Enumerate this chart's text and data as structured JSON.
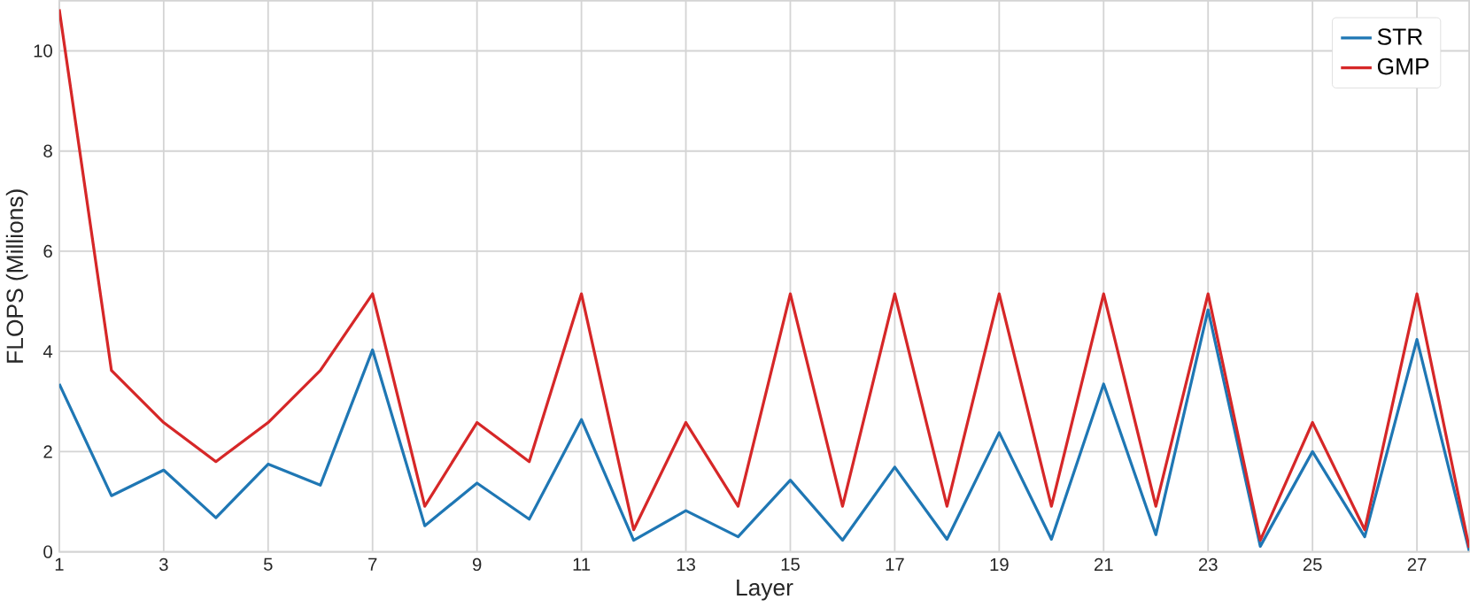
{
  "chart_data": {
    "type": "line",
    "xlabel": "Layer",
    "ylabel": "FLOPS (Millions)",
    "x": [
      1,
      2,
      3,
      4,
      5,
      6,
      7,
      8,
      9,
      10,
      11,
      12,
      13,
      14,
      15,
      16,
      17,
      18,
      19,
      20,
      21,
      22,
      23,
      24,
      25,
      26,
      27,
      28
    ],
    "series": [
      {
        "name": "STR",
        "color": "#1f77b4",
        "values": [
          3.35,
          1.12,
          1.63,
          0.68,
          1.75,
          1.33,
          4.03,
          0.52,
          1.37,
          0.65,
          2.64,
          0.23,
          0.82,
          0.3,
          1.43,
          0.23,
          1.69,
          0.25,
          2.38,
          0.25,
          3.35,
          0.34,
          4.83,
          0.11,
          2.0,
          0.3,
          4.24,
          0.02
        ]
      },
      {
        "name": "GMP",
        "color": "#d62728",
        "values": [
          10.83,
          3.62,
          2.58,
          1.8,
          2.58,
          3.62,
          5.15,
          0.91,
          2.58,
          1.8,
          5.15,
          0.44,
          2.58,
          0.91,
          5.15,
          0.91,
          5.15,
          0.91,
          5.15,
          0.91,
          5.15,
          0.91,
          5.15,
          0.23,
          2.58,
          0.44,
          5.15,
          0.08
        ]
      }
    ],
    "xlim": [
      1,
      28
    ],
    "ylim": [
      0,
      11.0
    ],
    "xticks": [
      1,
      3,
      5,
      7,
      9,
      11,
      13,
      15,
      17,
      19,
      21,
      23,
      25,
      27
    ],
    "yticks": [
      0,
      2,
      4,
      6,
      8,
      10
    ],
    "grid": true,
    "legend": "top right"
  }
}
